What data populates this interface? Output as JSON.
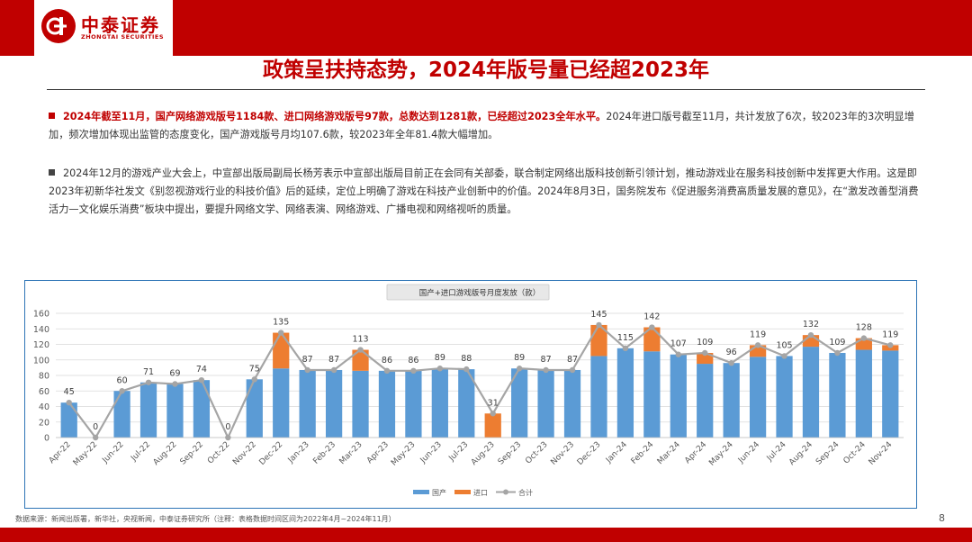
{
  "logo": {
    "name_cn": "中泰证券",
    "name_en": "ZHONGTAI SECURITIES"
  },
  "slide_title": "政策呈扶持态势，2024年版号量已经超2023年",
  "bullets": [
    {
      "highlight": "2024年截至11月，国产网络游戏版号1184款、进口网络游戏版号97款，总数达到1281款，已经超过2023全年水平。",
      "text": "2024年进口版号截至11月，共计发放了6次，较2023年的3次明显增加，频次增加体现出监管的态度变化，国产游戏版号月均107.6款，较2023年全年81.4款大幅增加。"
    },
    {
      "highlight": "",
      "text": "2024年12月的游戏产业大会上，中宣部出版局副局长杨芳表示中宣部出版局目前正在会同有关部委，联合制定网络出版科技创新引领计划，推动游戏业在服务科技创新中发挥更大作用。这是即2023年初新华社发文《别忽视游戏行业的科技价值》后的延续，定位上明确了游戏在科技产业创新中的价值。2024年8月3日，国务院发布《促进服务消费高质量发展的意见》，在“激发改善型消费活力—文化娱乐消费”板块中提出，要提升网络文学、网络表演、网络游戏、广播电视和网络视听的质量。"
    }
  ],
  "chart_data": {
    "type": "bar",
    "stacked": true,
    "title": "国产+进口游戏版号月度发放（款）",
    "categories": [
      "Apr-22",
      "May-22",
      "Jun-22",
      "Jul-22",
      "Aug-22",
      "Sep-22",
      "Oct-22",
      "Nov-22",
      "Dec-22",
      "Jan-23",
      "Feb-23",
      "Mar-23",
      "Apr-23",
      "May-23",
      "Jun-23",
      "Jul-23",
      "Aug-23",
      "Sep-23",
      "Oct-23",
      "Nov-23",
      "Dec-23",
      "Jan-24",
      "Feb-24",
      "Mar-24",
      "Apr-24",
      "May-24",
      "Jun-24",
      "Jul-24",
      "Aug-24",
      "Sep-24",
      "Oct-24",
      "Nov-24"
    ],
    "series": [
      {
        "name": "国产",
        "color": "#5b9bd5",
        "values": [
          45,
          0,
          60,
          71,
          69,
          74,
          0,
          75,
          89,
          87,
          87,
          86,
          86,
          86,
          89,
          88,
          0,
          89,
          87,
          87,
          105,
          115,
          111,
          107,
          95,
          96,
          104,
          105,
          117,
          109,
          113,
          112
        ]
      },
      {
        "name": "进口",
        "color": "#ed7d31",
        "values": [
          0,
          0,
          0,
          0,
          0,
          0,
          0,
          0,
          46,
          0,
          0,
          27,
          0,
          0,
          0,
          0,
          31,
          0,
          0,
          0,
          40,
          0,
          31,
          0,
          14,
          0,
          15,
          0,
          15,
          0,
          15,
          7
        ]
      },
      {
        "name": "合计",
        "color": "#a5a5a5",
        "type": "line",
        "values": [
          45,
          0,
          60,
          71,
          69,
          74,
          0,
          75,
          135,
          87,
          87,
          113,
          86,
          86,
          89,
          88,
          31,
          89,
          87,
          87,
          145,
          115,
          142,
          107,
          109,
          96,
          119,
          105,
          132,
          109,
          128,
          119
        ]
      }
    ],
    "yticks": [
      0,
      20,
      40,
      60,
      80,
      100,
      120,
      140,
      160
    ],
    "ylim": [
      0,
      160
    ],
    "legend": [
      "国产",
      "进口",
      "合计"
    ],
    "legend_position": "bottom"
  },
  "footnote": "数据来源：新闻出版署，新华社，央视新闻，中泰证券研究所（注释：表格数据时间区间为2022年4月~2024年11月）",
  "page_number": "8"
}
